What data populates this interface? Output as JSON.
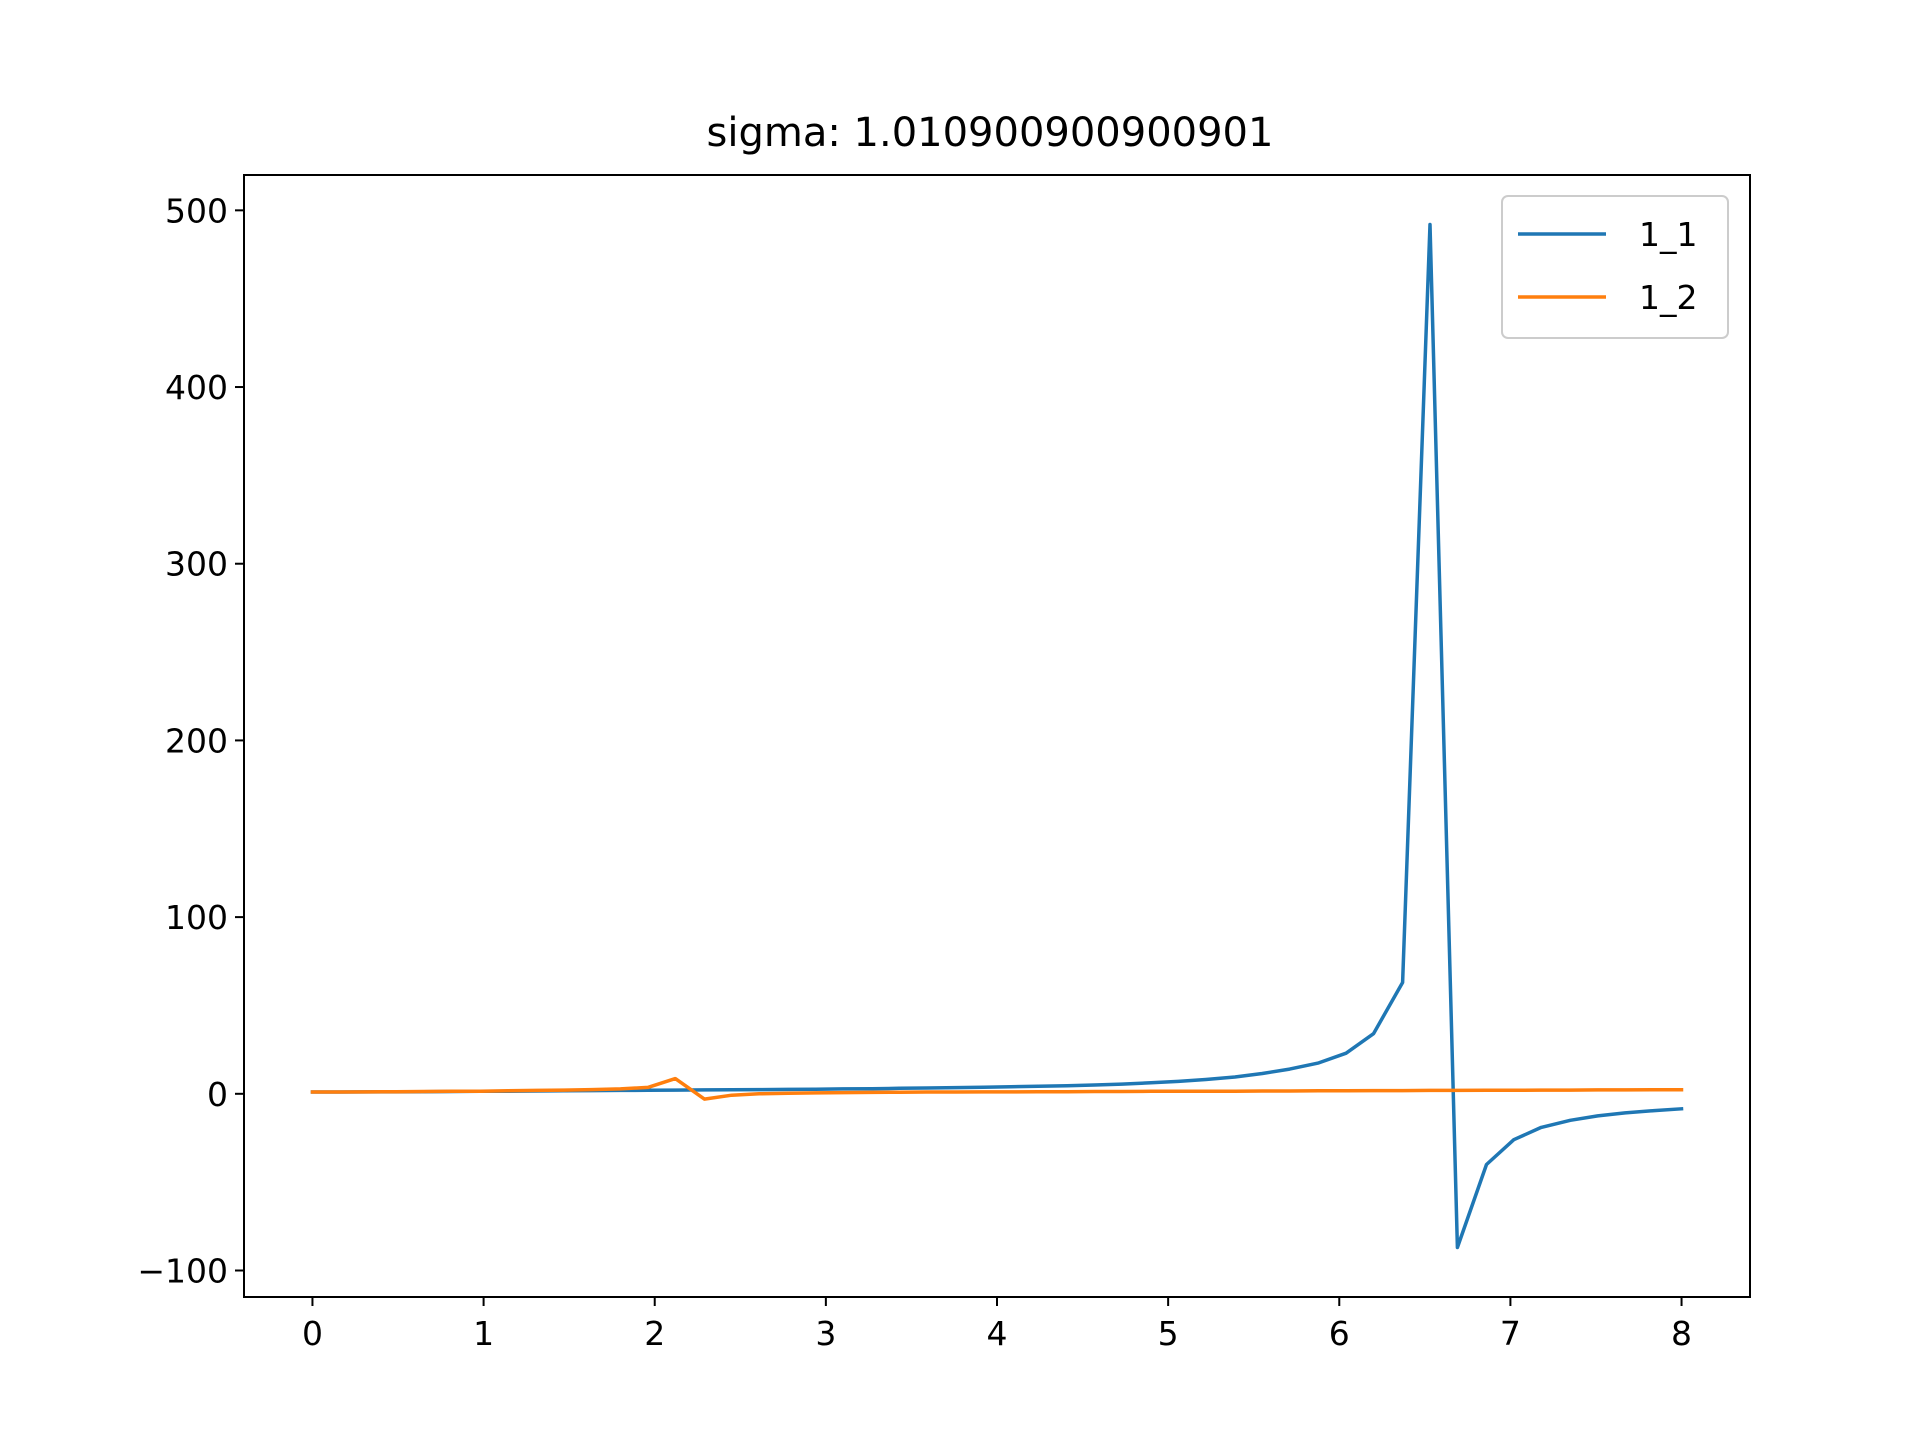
{
  "chart_data": {
    "type": "line",
    "title": "sigma: 1.010900900900901",
    "xlabel": "",
    "ylabel": "",
    "xlim": [
      -0.4,
      8.4
    ],
    "ylim": [
      -115,
      520
    ],
    "xticks": [
      0,
      1,
      2,
      3,
      4,
      5,
      6,
      7,
      8
    ],
    "xtick_labels": [
      "0",
      "1",
      "2",
      "3",
      "4",
      "5",
      "6",
      "7",
      "8"
    ],
    "yticks": [
      -100,
      0,
      100,
      200,
      300,
      400,
      500
    ],
    "ytick_labels": [
      "−100",
      "0",
      "100",
      "200",
      "300",
      "400",
      "500"
    ],
    "grid": false,
    "legend": {
      "placement": "top-right"
    },
    "series": [
      {
        "name": "1_1",
        "color": "#1f77b4",
        "x": [
          0,
          0.16,
          0.33,
          0.49,
          0.65,
          0.82,
          0.98,
          1.14,
          1.31,
          1.47,
          1.63,
          1.8,
          1.96,
          2.12,
          2.29,
          2.45,
          2.61,
          2.78,
          2.94,
          3.1,
          3.27,
          3.43,
          3.59,
          3.76,
          3.92,
          4.08,
          4.24,
          4.41,
          4.57,
          4.73,
          4.9,
          5.06,
          5.22,
          5.39,
          5.55,
          5.71,
          5.88,
          6.04,
          6.2,
          6.37,
          6.53,
          6.69,
          6.86,
          7.02,
          7.18,
          7.35,
          7.51,
          7.67,
          7.84,
          8.0
        ],
        "y": [
          1.0,
          1.0,
          1.1,
          1.1,
          1.2,
          1.3,
          1.4,
          1.5,
          1.6,
          1.7,
          1.8,
          1.9,
          2.0,
          2.1,
          2.2,
          2.3,
          2.4,
          2.5,
          2.6,
          2.8,
          2.9,
          3.1,
          3.3,
          3.5,
          3.7,
          4.0,
          4.3,
          4.6,
          5.0,
          5.5,
          6.2,
          7.0,
          8.1,
          9.5,
          11.5,
          14.0,
          17.5,
          23.0,
          34.0,
          63.0,
          492.0,
          -87.0,
          -40.0,
          -26.0,
          -19.0,
          -15.0,
          -12.5,
          -10.8,
          -9.5,
          -8.5
        ]
      },
      {
        "name": "1_2",
        "color": "#ff7f0e",
        "x": [
          0,
          0.16,
          0.33,
          0.49,
          0.65,
          0.82,
          0.98,
          1.14,
          1.31,
          1.47,
          1.63,
          1.8,
          1.96,
          2.12,
          2.29,
          2.45,
          2.61,
          2.78,
          2.94,
          3.1,
          3.27,
          3.43,
          3.59,
          3.76,
          3.92,
          4.08,
          4.24,
          4.41,
          4.57,
          4.73,
          4.9,
          5.06,
          5.22,
          5.39,
          5.55,
          5.71,
          5.88,
          6.04,
          6.2,
          6.37,
          6.53,
          6.69,
          6.86,
          7.02,
          7.18,
          7.35,
          7.51,
          7.67,
          7.84,
          8.0
        ],
        "y": [
          1.0,
          1.0,
          1.1,
          1.2,
          1.3,
          1.4,
          1.5,
          1.7,
          1.9,
          2.1,
          2.4,
          2.8,
          3.6,
          8.6,
          -3.0,
          -0.8,
          0.0,
          0.3,
          0.5,
          0.7,
          0.8,
          0.9,
          1.0,
          1.0,
          1.1,
          1.1,
          1.2,
          1.2,
          1.3,
          1.3,
          1.4,
          1.4,
          1.5,
          1.5,
          1.6,
          1.6,
          1.7,
          1.7,
          1.8,
          1.8,
          1.9,
          1.9,
          2.0,
          2.0,
          2.1,
          2.1,
          2.2,
          2.2,
          2.3,
          2.3
        ]
      }
    ]
  }
}
